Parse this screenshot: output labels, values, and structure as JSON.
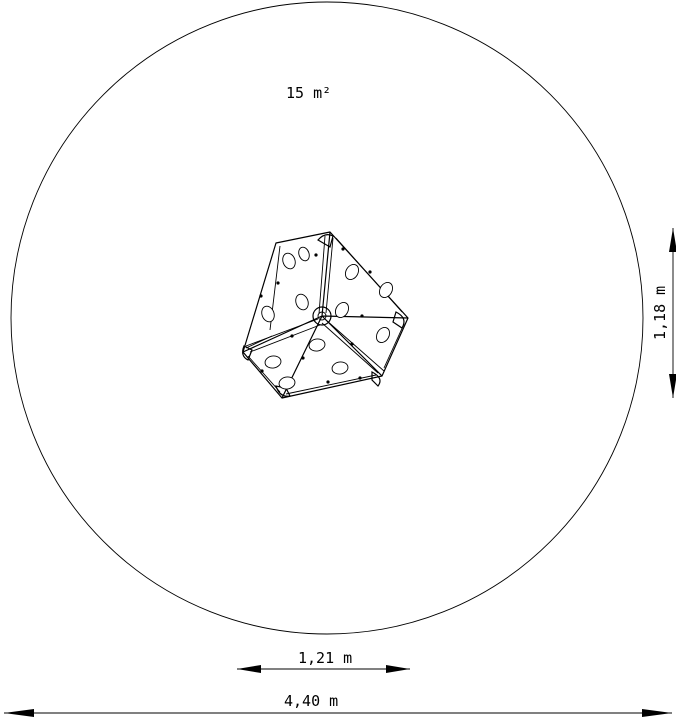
{
  "drawing": {
    "area_label": "15 m²",
    "height_label": "1,18 m",
    "object_width_label": "1,21 m",
    "zone_width_label": "4,40 m"
  }
}
